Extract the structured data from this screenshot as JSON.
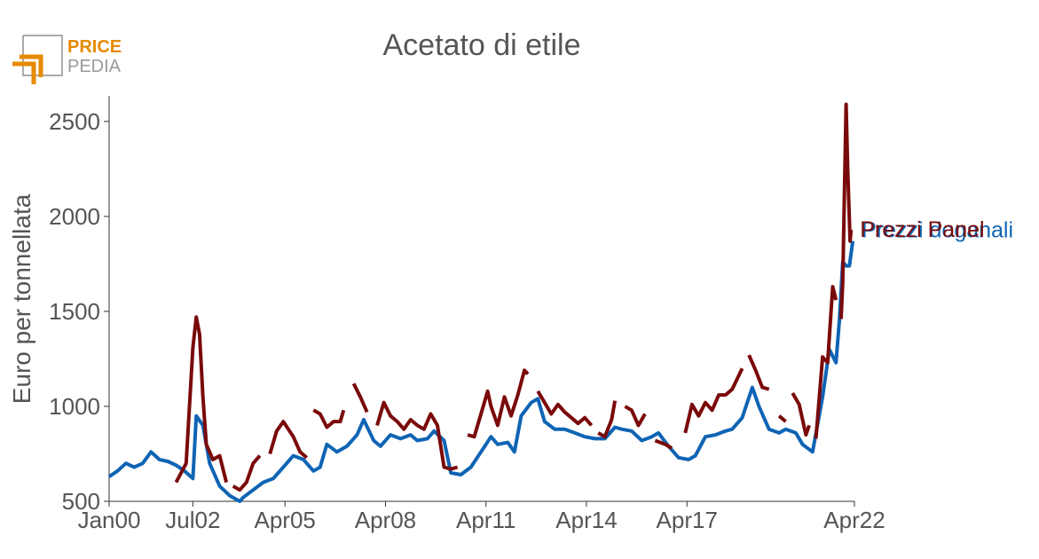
{
  "logo": {
    "top": "PRICE",
    "bottom": "PEDIA"
  },
  "chart_data": {
    "type": "line",
    "title": "Acetato di etile",
    "y_label": "Euro per tonnellata",
    "xlim": [
      2000,
      2022.25
    ],
    "ylim": [
      500,
      2635
    ],
    "xticks": [
      {
        "value": 2000,
        "label": "Jan00"
      },
      {
        "value": 2002.5,
        "label": "Jul02"
      },
      {
        "value": 2005.25,
        "label": "Apr05"
      },
      {
        "value": 2008.25,
        "label": "Apr08"
      },
      {
        "value": 2011.25,
        "label": "Apr11"
      },
      {
        "value": 2014.25,
        "label": "Apr14"
      },
      {
        "value": 2017.25,
        "label": "Apr17"
      },
      {
        "value": 2022.25,
        "label": "Apr22"
      }
    ],
    "yticks": [
      500,
      1000,
      1500,
      2000,
      2500
    ],
    "series": [
      {
        "name": "Prezzi doganali",
        "color": "#0f64b4",
        "x": [
          2000.0,
          2000.25,
          2000.5,
          2000.75,
          2001.0,
          2001.25,
          2001.5,
          2001.75,
          2002.0,
          2002.25,
          2002.5,
          2002.6,
          2002.8,
          2003.0,
          2003.3,
          2003.6,
          2003.9,
          2004.0,
          2004.3,
          2004.6,
          2004.9,
          2005.2,
          2005.5,
          2005.8,
          2006.1,
          2006.3,
          2006.5,
          2006.8,
          2007.1,
          2007.4,
          2007.6,
          2007.9,
          2008.1,
          2008.4,
          2008.7,
          2009.0,
          2009.2,
          2009.5,
          2009.7,
          2010.0,
          2010.2,
          2010.5,
          2010.8,
          2011.1,
          2011.4,
          2011.6,
          2011.9,
          2012.1,
          2012.3,
          2012.6,
          2012.8,
          2013.0,
          2013.3,
          2013.6,
          2013.9,
          2014.2,
          2014.5,
          2014.8,
          2015.1,
          2015.3,
          2015.6,
          2015.9,
          2016.2,
          2016.4,
          2016.7,
          2017.0,
          2017.3,
          2017.5,
          2017.8,
          2018.1,
          2018.4,
          2018.6,
          2018.9,
          2019.2,
          2019.4,
          2019.7,
          2020.0,
          2020.2,
          2020.5,
          2020.7,
          2021.0,
          2021.3,
          2021.5,
          2021.7,
          2021.8,
          2021.9,
          2022.0,
          2022.1,
          2022.2
        ],
        "values": [
          630,
          660,
          700,
          680,
          700,
          760,
          720,
          710,
          690,
          660,
          620,
          950,
          900,
          700,
          580,
          530,
          500,
          520,
          560,
          600,
          620,
          680,
          740,
          720,
          660,
          680,
          800,
          760,
          790,
          850,
          930,
          820,
          790,
          850,
          830,
          850,
          820,
          830,
          870,
          820,
          650,
          640,
          680,
          760,
          840,
          800,
          810,
          760,
          950,
          1020,
          1040,
          920,
          880,
          880,
          860,
          840,
          830,
          830,
          890,
          880,
          870,
          820,
          840,
          860,
          790,
          730,
          720,
          740,
          840,
          850,
          870,
          880,
          940,
          1100,
          1000,
          880,
          860,
          880,
          860,
          800,
          760,
          1050,
          1300,
          1230,
          1450,
          1760,
          1740,
          1740,
          1870
        ]
      },
      {
        "name": "Prezzi Panel",
        "color": "#7a0a0a",
        "x": [
          2002.0,
          2002.3,
          2002.5,
          2002.6,
          2002.7,
          2002.8,
          2002.9,
          2003.1,
          2003.3,
          2003.5,
          2003.6,
          2003.7,
          2003.9,
          2004.1,
          2004.3,
          2004.5,
          2004.6,
          2004.8,
          2005.0,
          2005.2,
          2005.5,
          2005.7,
          2005.9,
          2006.0,
          2006.1,
          2006.3,
          2006.5,
          2006.7,
          2006.9,
          2007.0,
          2007.1,
          2007.3,
          2007.5,
          2007.7,
          2007.8,
          2008.0,
          2008.2,
          2008.4,
          2008.6,
          2008.8,
          2009.0,
          2009.2,
          2009.4,
          2009.6,
          2009.8,
          2010.0,
          2010.2,
          2010.4,
          2010.5,
          2010.7,
          2010.9,
          2011.1,
          2011.3,
          2011.4,
          2011.6,
          2011.8,
          2012.0,
          2012.2,
          2012.4,
          2012.5,
          2012.6,
          2012.8,
          2013.0,
          2013.2,
          2013.4,
          2013.6,
          2013.8,
          2014.0,
          2014.2,
          2014.4,
          2014.5,
          2014.6,
          2014.8,
          2015.0,
          2015.1,
          2015.2,
          2015.4,
          2015.6,
          2015.8,
          2016.0,
          2016.1,
          2016.3,
          2016.6,
          2016.8,
          2016.9,
          2017.2,
          2017.4,
          2017.6,
          2017.8,
          2018.0,
          2018.2,
          2018.4,
          2018.6,
          2018.9,
          2019.0,
          2019.1,
          2019.3,
          2019.5,
          2019.7,
          2019.8,
          2020.0,
          2020.2,
          2020.3,
          2020.4,
          2020.6,
          2020.8,
          2020.9,
          2021.0,
          2021.1,
          2021.3,
          2021.45,
          2021.6,
          2021.7,
          2021.8,
          2021.85,
          2021.9,
          2022.0,
          2022.05,
          2022.12,
          2022.15
        ],
        "values": [
          600,
          700,
          1310,
          1470,
          1380,
          1050,
          800,
          720,
          740,
          600,
          null,
          580,
          560,
          600,
          700,
          740,
          null,
          750,
          870,
          920,
          840,
          760,
          730,
          null,
          980,
          960,
          890,
          920,
          920,
          980,
          null,
          1120,
          1050,
          970,
          null,
          900,
          1020,
          950,
          920,
          880,
          930,
          900,
          880,
          960,
          900,
          680,
          670,
          680,
          null,
          850,
          840,
          960,
          1080,
          1000,
          900,
          1050,
          950,
          1060,
          1190,
          1170,
          null,
          1080,
          1020,
          960,
          1010,
          970,
          940,
          910,
          940,
          900,
          null,
          860,
          840,
          930,
          1030,
          null,
          1000,
          980,
          900,
          960,
          null,
          820,
          800,
          780,
          null,
          860,
          1010,
          950,
          1020,
          980,
          1060,
          1060,
          1090,
          1200,
          null,
          1270,
          1190,
          1100,
          1090,
          null,
          950,
          920,
          null,
          1070,
          1010,
          850,
          900,
          null,
          830,
          1260,
          1230,
          1630,
          1560,
          null,
          1460,
          1650,
          2590,
          2250,
          1870,
          1930
        ]
      }
    ]
  }
}
